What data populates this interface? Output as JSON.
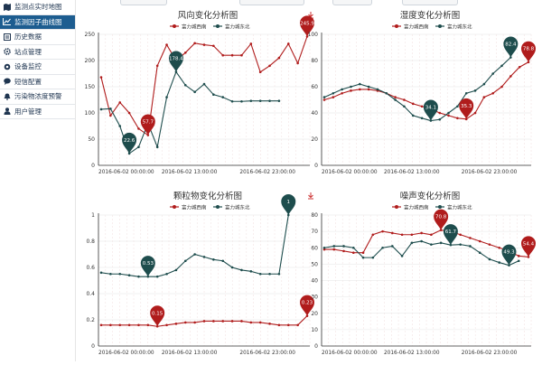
{
  "sidebar": {
    "items": [
      {
        "label": "监测点实时地图",
        "icon": "map-icon",
        "active": false
      },
      {
        "label": "监测因子曲线图",
        "icon": "line-chart-icon",
        "active": true
      },
      {
        "label": "历史数据",
        "icon": "history-icon",
        "active": false
      },
      {
        "label": "站点管理",
        "icon": "gear-icon",
        "active": false
      },
      {
        "label": "设备监控",
        "icon": "monitor-icon",
        "active": false
      },
      {
        "label": "短信配置",
        "icon": "chat-icon",
        "active": false
      },
      {
        "label": "污染物浓度预警",
        "icon": "bell-icon",
        "active": false
      },
      {
        "label": "用户管理",
        "icon": "user-icon",
        "active": false
      }
    ]
  },
  "colors": {
    "red": "#b01c1c",
    "teal": "#1e4d4d",
    "active_nav": "#1d5d90"
  },
  "chart_data": [
    {
      "id": "wind",
      "type": "line",
      "title": "风向变化分析图",
      "legend": [
        "富力城西南",
        "富力城东北"
      ],
      "ylim": [
        0,
        250
      ],
      "yticks": [
        0,
        50,
        100,
        150,
        200,
        250
      ],
      "xticks": [
        "2016-06-02 00:00:00",
        "2016-06-02 13:00:00",
        "2016-06-02 23:00:00"
      ],
      "series": [
        {
          "name": "富力城西南",
          "values": [
            168,
            95,
            120,
            100,
            70,
            57.7,
            190,
            230,
            200,
            215,
            233,
            230,
            228,
            210,
            210,
            210,
            232,
            178,
            190,
            205,
            232,
            195,
            245.9
          ]
        },
        {
          "name": "富力城东北",
          "values": [
            107,
            108,
            75,
            22.6,
            35,
            80,
            35,
            130,
            178.4,
            153,
            140,
            155,
            135,
            130,
            122,
            122,
            123,
            123,
            123,
            123
          ]
        }
      ],
      "markers": [
        {
          "series": "富力城东北",
          "label": "22.6"
        },
        {
          "series": "富力城西南",
          "label": "57.7"
        },
        {
          "series": "富力城东北",
          "label": "178.4"
        },
        {
          "series": "富力城西南",
          "label": "245.9"
        }
      ],
      "download_icon": true
    },
    {
      "id": "humidity",
      "type": "line",
      "title": "湿度变化分析图",
      "legend": [
        "富力城西南",
        "富力城东北"
      ],
      "ylim": [
        0,
        100
      ],
      "yticks": [
        0,
        20,
        40,
        60,
        80,
        100
      ],
      "xticks": [
        "2016-06-02 00:00:00",
        "2016-06-02 13:00:00",
        "2016-06-02 23:00:00"
      ],
      "series": [
        {
          "name": "富力城西南",
          "values": [
            50,
            52,
            55,
            57,
            58,
            58,
            57,
            55,
            52,
            50,
            47,
            45,
            43,
            40,
            38,
            36,
            35.3,
            40,
            52,
            55,
            60,
            68,
            75,
            78.8
          ]
        },
        {
          "name": "富力城东北",
          "values": [
            52,
            55,
            58,
            60,
            62,
            60,
            58,
            55,
            50,
            45,
            38,
            36,
            34.1,
            35,
            40,
            45,
            55,
            57,
            62,
            70,
            76,
            82.4
          ]
        }
      ],
      "markers": [
        {
          "series": "富力城东北",
          "label": "34.1"
        },
        {
          "series": "富力城西南",
          "label": "35.3"
        },
        {
          "series": "富力城东北",
          "label": "82.4"
        },
        {
          "series": "富力城西南",
          "label": "78.8"
        }
      ]
    },
    {
      "id": "particulate",
      "type": "line",
      "title": "颗粒物变化分析图",
      "legend": [
        "富力城西南",
        "富力城东北"
      ],
      "ylim": [
        0,
        1
      ],
      "yticks": [
        0,
        0.2,
        0.4,
        0.6,
        0.8,
        1
      ],
      "xticks": [
        "2016-06-02 00:00:00",
        "2016-06-02 13:00:00",
        "2016-06-02 23:00:00"
      ],
      "series": [
        {
          "name": "富力城西南",
          "values": [
            0.16,
            0.16,
            0.16,
            0.16,
            0.16,
            0.16,
            0.15,
            0.16,
            0.17,
            0.18,
            0.18,
            0.19,
            0.19,
            0.19,
            0.19,
            0.19,
            0.18,
            0.18,
            0.17,
            0.16,
            0.16,
            0.16,
            0.23
          ]
        },
        {
          "name": "富力城东北",
          "values": [
            0.56,
            0.55,
            0.55,
            0.54,
            0.53,
            0.53,
            0.53,
            0.55,
            0.58,
            0.65,
            0.7,
            0.68,
            0.66,
            0.65,
            0.6,
            0.58,
            0.57,
            0.55,
            0.55,
            0.55,
            1
          ]
        }
      ],
      "markers": [
        {
          "series": "富力城东北",
          "label": "0.53"
        },
        {
          "series": "富力城西南",
          "label": "0.15"
        },
        {
          "series": "富力城东北",
          "label": "1"
        },
        {
          "series": "富力城西南",
          "label": "0.23"
        }
      ],
      "download_icon": true
    },
    {
      "id": "noise",
      "type": "line",
      "title": "噪声变化分析图",
      "legend": [
        "富力城西南",
        "富力城东北"
      ],
      "ylim": [
        0,
        80
      ],
      "yticks": [
        0,
        10,
        20,
        30,
        40,
        50,
        60,
        70,
        80
      ],
      "xticks": [
        "2016-06-02 00:00:00",
        "2016-06-02 13:00:00",
        "2016-06-02 23:00:00"
      ],
      "series": [
        {
          "name": "富力城西南",
          "values": [
            59,
            59,
            58,
            57,
            57,
            68,
            70,
            69,
            68,
            68,
            69,
            68,
            70.8,
            70,
            68,
            66,
            64,
            62,
            60,
            58,
            55,
            54.4
          ]
        },
        {
          "name": "富力城东北",
          "values": [
            60,
            61,
            61,
            60,
            54,
            54,
            60,
            61,
            55,
            63,
            64,
            62,
            63,
            61.7,
            62,
            61,
            57,
            53,
            51,
            49.3,
            52
          ]
        }
      ],
      "markers": [
        {
          "series": "富力城西南",
          "label": "70.8"
        },
        {
          "series": "富力城东北",
          "label": "61.7"
        },
        {
          "series": "富力城东北",
          "label": "49.3"
        },
        {
          "series": "富力城西南",
          "label": "54.4"
        }
      ]
    }
  ]
}
